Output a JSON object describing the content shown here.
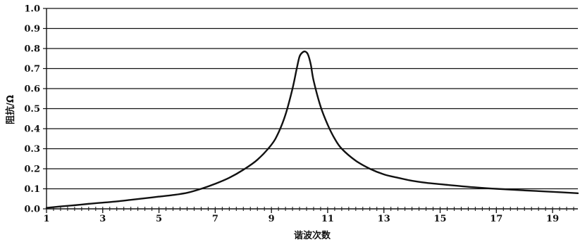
{
  "chart_data": {
    "type": "line",
    "title": "",
    "xlabel": "谐波次数",
    "ylabel": "阻抗/Ω",
    "xlim": [
      1,
      19.9
    ],
    "ylim": [
      0,
      1.0
    ],
    "grid": "horizontal",
    "legend": "none",
    "x_ticks": [
      "1",
      "3",
      "5",
      "7",
      "9",
      "11",
      "13",
      "15",
      "17",
      "19"
    ],
    "y_ticks": [
      "0.0",
      "0.1",
      "0.2",
      "0.3",
      "0.4",
      "0.5",
      "0.6",
      "0.7",
      "0.8",
      "0.9",
      "1.0"
    ],
    "colors": {
      "line": "#111111",
      "grid": "#111111",
      "background": "#ffffff"
    },
    "series": [
      {
        "x": [
          1.0,
          1.5,
          2.0,
          2.5,
          3.0,
          3.5,
          4.0,
          4.5,
          5.0,
          5.5,
          6.0,
          6.5,
          7.0,
          7.5,
          8.0,
          8.5,
          9.0,
          9.25,
          9.5,
          9.75,
          9.9,
          10.0,
          10.1,
          10.2,
          10.3,
          10.4,
          10.5,
          10.75,
          11.0,
          11.25,
          11.5,
          12.0,
          12.5,
          13.0,
          13.5,
          14.0,
          14.5,
          15.0,
          16.0,
          17.0,
          18.0,
          19.0,
          19.9
        ],
        "values": [
          0.005,
          0.012,
          0.018,
          0.025,
          0.031,
          0.037,
          0.045,
          0.053,
          0.061,
          0.069,
          0.08,
          0.1,
          0.125,
          0.155,
          0.195,
          0.245,
          0.32,
          0.38,
          0.47,
          0.6,
          0.7,
          0.76,
          0.78,
          0.785,
          0.77,
          0.72,
          0.64,
          0.51,
          0.42,
          0.35,
          0.3,
          0.24,
          0.2,
          0.172,
          0.155,
          0.14,
          0.13,
          0.123,
          0.11,
          0.1,
          0.092,
          0.085,
          0.078
        ]
      }
    ]
  }
}
